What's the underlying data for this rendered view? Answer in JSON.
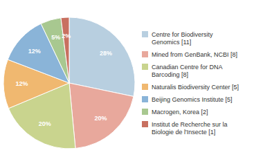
{
  "chart_data": {
    "type": "pie",
    "categories": [
      "Centre for Biodiversity\nGenomics [11]",
      "Mined from GenBank, NCBI [8]",
      "Canadian Centre for DNA\nBarcoding [8]",
      "Naturalis Biodiversity Center [5]",
      "Beijing Genomics Institute [5]",
      "Macrogen, Korea [2]",
      "Institut de Recherche sur la\nBiologie de l'Insecte [1]"
    ],
    "values": [
      28,
      20,
      20,
      12,
      12,
      5,
      2
    ],
    "value_labels": [
      "28%",
      "20%",
      "20%",
      "12%",
      "12%",
      "5%",
      "2%"
    ],
    "colors": [
      "#b8cfe0",
      "#e8a89c",
      "#c9d48e",
      "#f0b870",
      "#8ab4d8",
      "#a8c890",
      "#c87060"
    ],
    "data_labels": true,
    "legend": "right"
  }
}
